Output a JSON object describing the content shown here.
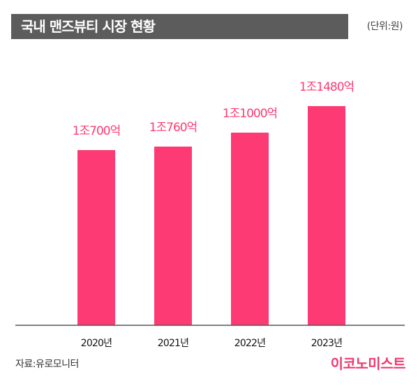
{
  "header": {
    "title": "국내 맨즈뷰티 시장 현황",
    "unit": "(단위:원)"
  },
  "colors": {
    "bar": "#fd3a73",
    "label": "#fd3a73",
    "title_bar": "#5c5c5c",
    "axis": "#555555",
    "logo": "#f0386f"
  },
  "chart_data": {
    "type": "bar",
    "title": "국내 맨즈뷰티 시장 현황",
    "unit": "(단위:원)",
    "categories": [
      "2020년",
      "2021년",
      "2022년",
      "2023년"
    ],
    "values": [
      10700,
      10760,
      11000,
      11480
    ],
    "data_labels": [
      "1조700억",
      "1조760억",
      "1조1000억",
      "1조1480억"
    ],
    "value_unit": "억원",
    "xlabel": "",
    "ylabel": "",
    "grid": false,
    "legend": "none"
  },
  "footer": {
    "source": "자료:유로모니터",
    "logo": "이코노미스트"
  }
}
